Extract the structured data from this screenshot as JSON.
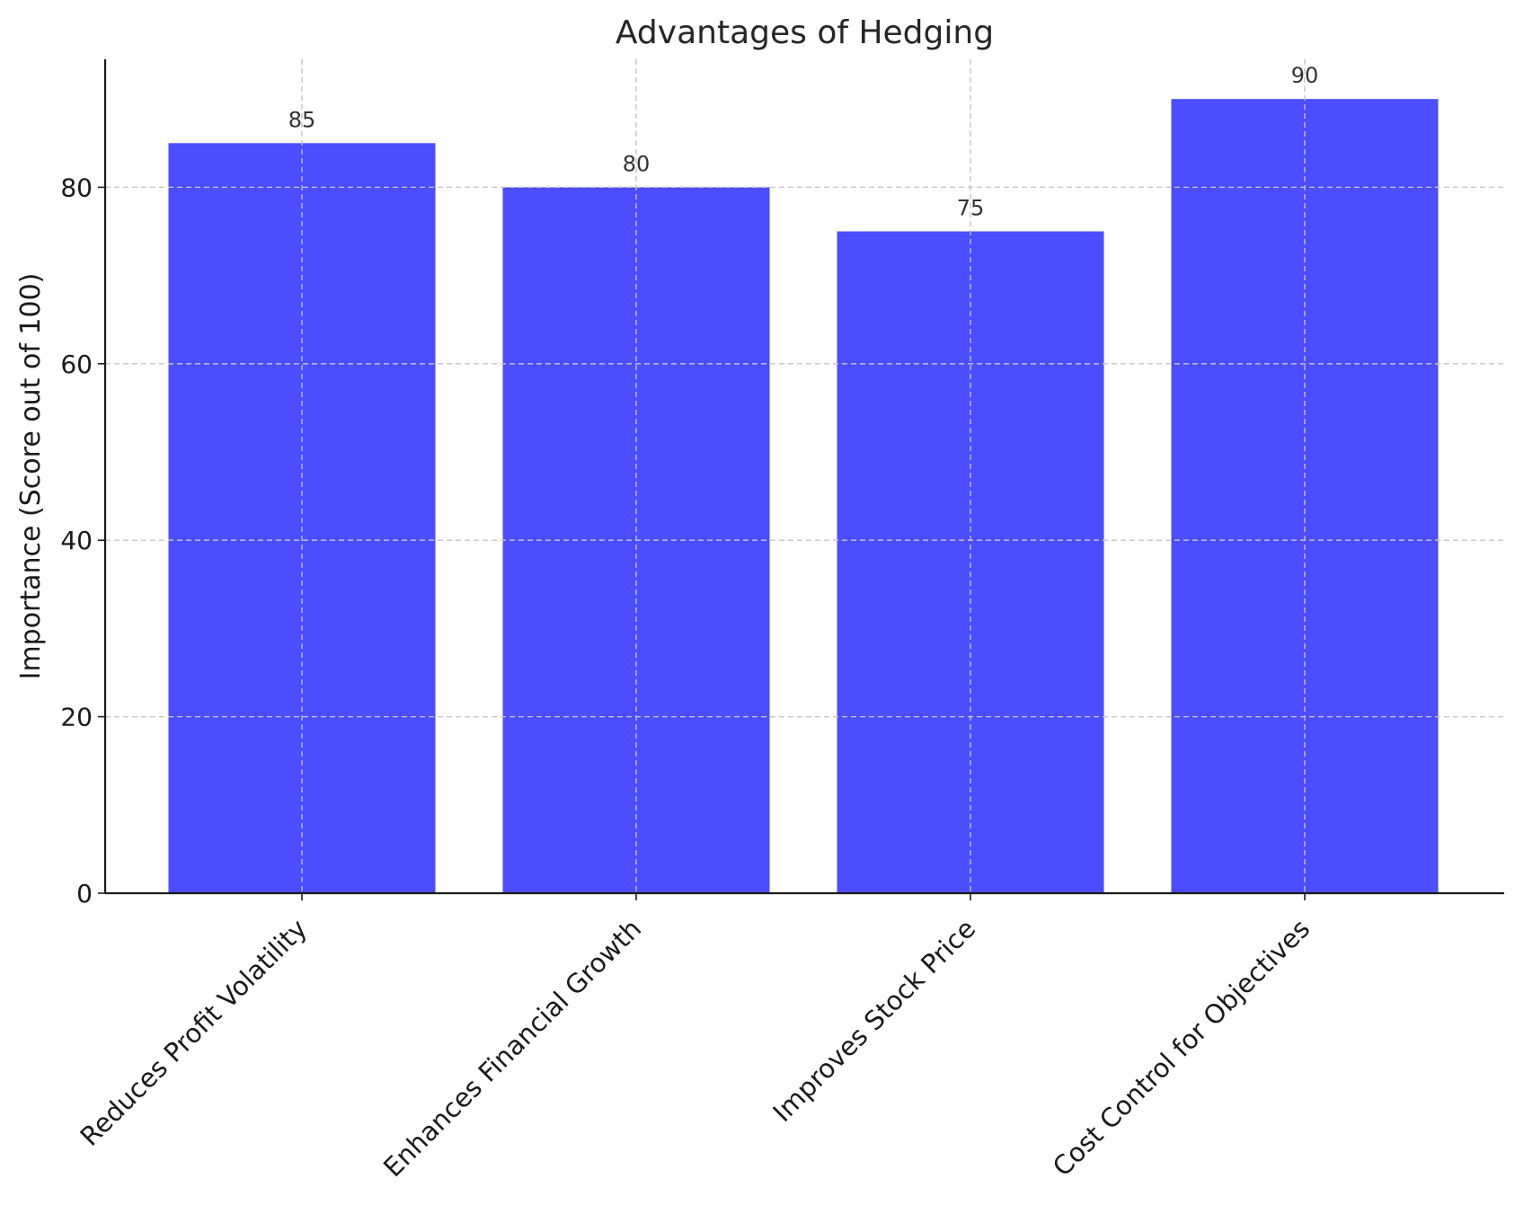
{
  "chart_data": {
    "type": "bar",
    "title": "Advantages of Hedging",
    "xlabel": "",
    "ylabel": "Importance (Score out of 100)",
    "categories": [
      "Reduces Profit Volatility",
      "Enhances Financial Growth",
      "Improves Stock Price",
      "Cost Control for Objectives"
    ],
    "values": [
      85,
      80,
      75,
      90
    ],
    "data_labels": [
      "85",
      "80",
      "75",
      "90"
    ],
    "ylim": [
      0,
      94.5
    ],
    "yticks": [
      0,
      20,
      40,
      60,
      80
    ],
    "grid": true,
    "bar_color": "#4b4dff"
  }
}
